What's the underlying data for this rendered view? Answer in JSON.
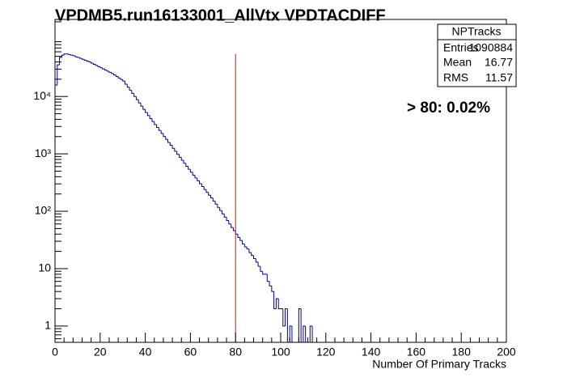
{
  "chart_data": {
    "type": "histogram",
    "title": "VPDMB5.run16133001_AllVtx VPDTACDIFF",
    "x_label": "Number Of Primary Tracks",
    "bins": [
      0,
      1,
      2,
      3,
      4,
      5,
      6,
      7,
      8,
      9,
      10,
      11,
      12,
      13,
      14,
      15,
      16,
      17,
      18,
      19,
      20,
      21,
      22,
      23,
      24,
      25,
      26,
      27,
      28,
      29,
      30,
      31,
      32,
      33,
      34,
      35,
      36,
      37,
      38,
      39,
      40,
      41,
      42,
      43,
      44,
      45,
      46,
      47,
      48,
      49,
      50,
      51,
      52,
      53,
      54,
      55,
      56,
      57,
      58,
      59,
      60,
      61,
      62,
      63,
      64,
      65,
      66,
      67,
      68,
      69,
      70,
      71,
      72,
      73,
      74,
      75,
      76,
      77,
      78,
      79,
      80,
      81,
      82,
      83,
      84,
      85,
      86,
      87,
      88,
      89,
      90,
      91,
      92,
      93,
      94,
      95,
      96,
      97,
      98,
      99,
      100,
      101,
      102,
      103,
      104,
      105,
      106,
      107,
      108,
      109,
      110,
      111,
      112,
      113,
      114,
      115,
      116,
      117,
      118,
      119,
      120
    ],
    "values": [
      15800,
      35500,
      47900,
      52500,
      55000,
      55000,
      53700,
      52500,
      51300,
      49000,
      47900,
      46100,
      44500,
      42900,
      41300,
      39800,
      38000,
      36300,
      34700,
      33100,
      31600,
      30200,
      28800,
      27500,
      26300,
      25100,
      23700,
      22300,
      21000,
      19800,
      18600,
      16400,
      14500,
      12800,
      11300,
      10000,
      8790,
      7730,
      6790,
      5970,
      5250,
      4660,
      4130,
      3660,
      3250,
      2880,
      2560,
      2270,
      2010,
      1790,
      1580,
      1410,
      1250,
      1110,
      982,
      871,
      773,
      685,
      608,
      540,
      479,
      427,
      380,
      339,
      302,
      269,
      240,
      214,
      191,
      170,
      151,
      133,
      117,
      103,
      90,
      79,
      69,
      60,
      52,
      46,
      40,
      35,
      31,
      27,
      24,
      22,
      19,
      17,
      15,
      13,
      11,
      9,
      8,
      8,
      6,
      5,
      4,
      2,
      3,
      2,
      2,
      1,
      2,
      0,
      1,
      0,
      0,
      0,
      2,
      0,
      1,
      0,
      0,
      1,
      0,
      0,
      0,
      0,
      0,
      0
    ],
    "color": "#000099",
    "log_y": true,
    "xlim": [
      0,
      200
    ],
    "xticks": [
      0,
      20,
      40,
      60,
      80,
      100,
      120,
      140,
      160,
      180,
      200
    ],
    "ylim": [
      0.52,
      220000
    ],
    "yticks": [
      1,
      10,
      {
        "value": 100,
        "label": "10²"
      },
      {
        "value": 1000,
        "label": "10³"
      },
      {
        "value": 10000,
        "label": "10⁴"
      }
    ],
    "cut_line": {
      "x": 80,
      "color": "#ff0000"
    },
    "annotation": {
      "text": "> 80: 0.02%",
      "color": "#ff0000"
    },
    "stats_box": {
      "title": "NPTracks",
      "rows": [
        [
          "Entries",
          "1090884"
        ],
        [
          "Mean",
          "16.77"
        ],
        [
          "RMS",
          "11.57"
        ]
      ]
    }
  }
}
